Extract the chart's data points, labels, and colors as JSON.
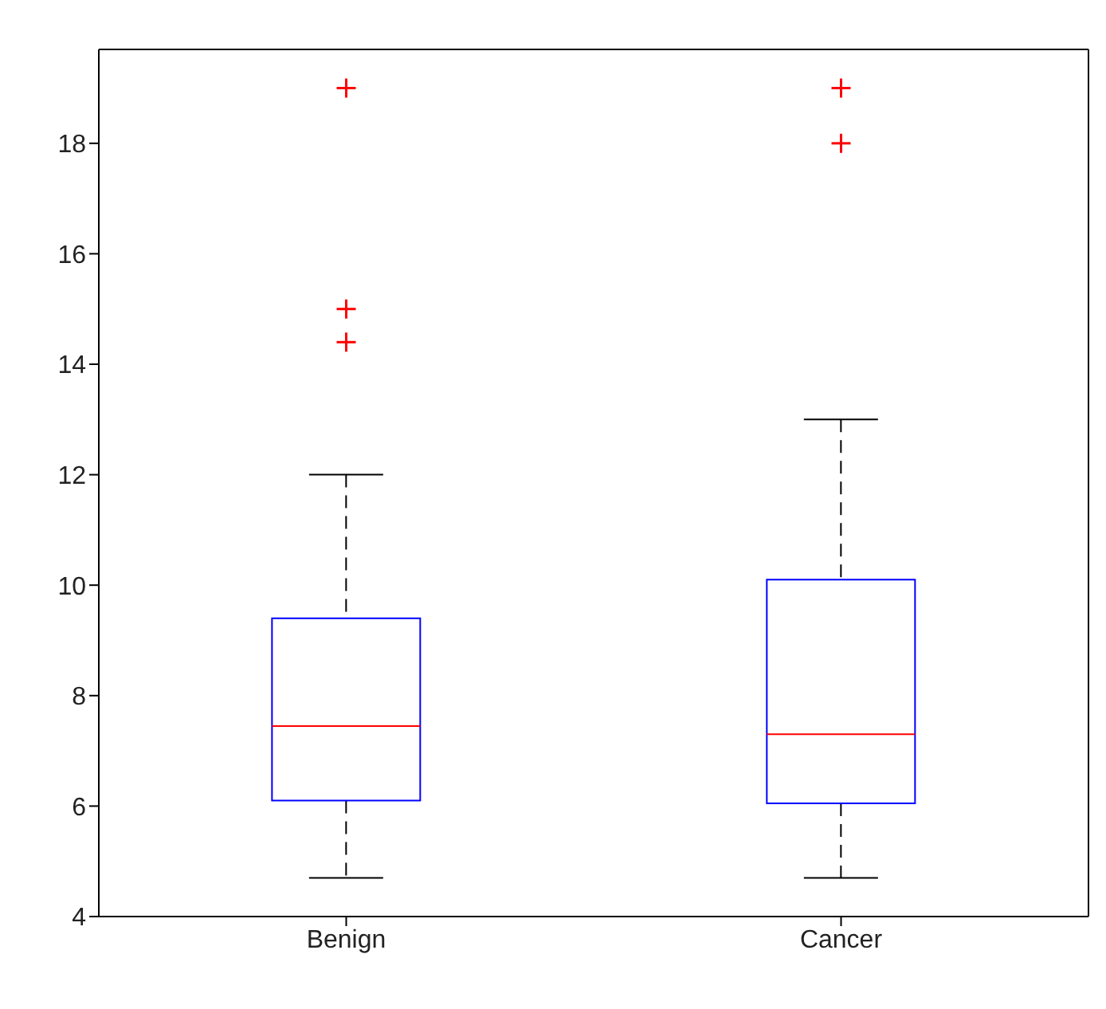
{
  "chart_data": {
    "type": "box",
    "categories": [
      "Benign",
      "Cancer"
    ],
    "color": "#0000ff",
    "boxes": [
      {
        "low": 4.7,
        "q1": 6.1,
        "median": 7.45,
        "q3": 9.4,
        "high": 12,
        "outliers": [
          14.4,
          15,
          19
        ]
      },
      {
        "low": 4.7,
        "q1": 6.05,
        "median": 7.3,
        "q3": 10.1,
        "high": 13,
        "outliers": [
          18,
          19
        ]
      }
    ],
    "ylim": [
      4,
      19.7
    ],
    "yticks": [
      4,
      6,
      8,
      10,
      12,
      14,
      16,
      18
    ]
  }
}
